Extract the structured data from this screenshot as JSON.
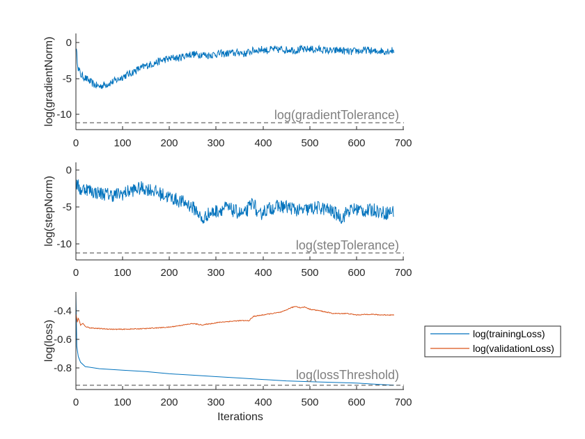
{
  "chart_data": [
    {
      "type": "line",
      "ylabel": "log(gradientNorm)",
      "xlim": [
        0,
        700
      ],
      "ylim": [
        -12.5,
        1.5
      ],
      "xticks": [
        0,
        100,
        200,
        300,
        400,
        500,
        600,
        700
      ],
      "yticks": [
        0,
        -5,
        -10
      ],
      "series": [
        {
          "name": "log(gradientNorm)",
          "color": "#0072BD",
          "x": [
            0,
            5,
            10,
            20,
            30,
            40,
            50,
            60,
            70,
            80,
            90,
            100,
            110,
            120,
            130,
            140,
            150,
            160,
            170,
            180,
            190,
            200,
            210,
            220,
            230,
            240,
            250,
            260,
            270,
            280,
            290,
            300,
            310,
            320,
            330,
            340,
            350,
            360,
            370,
            380,
            390,
            400,
            410,
            420,
            430,
            440,
            450,
            460,
            470,
            480,
            490,
            500,
            510,
            520,
            530,
            540,
            550,
            560,
            570,
            580,
            590,
            600,
            610,
            620,
            630,
            640,
            650,
            660,
            670,
            680
          ],
          "y": [
            -0.5,
            -3.5,
            -4.5,
            -5.0,
            -5.5,
            -6.0,
            -6.2,
            -6.0,
            -5.8,
            -5.5,
            -5.2,
            -4.8,
            -4.5,
            -4.2,
            -3.8,
            -3.5,
            -3.2,
            -3.0,
            -2.8,
            -2.5,
            -2.3,
            -2.2,
            -2.0,
            -2.1,
            -1.8,
            -1.6,
            -1.5,
            -1.6,
            -1.5,
            -1.7,
            -1.6,
            -1.5,
            -1.4,
            -1.5,
            -1.3,
            -1.4,
            -1.2,
            -1.5,
            -1.2,
            -1.0,
            -0.9,
            -0.8,
            -1.0,
            -0.8,
            -0.9,
            -0.8,
            -0.9,
            -0.8,
            -1.0,
            -0.8,
            -0.9,
            -0.7,
            -0.9,
            -0.8,
            -0.9,
            -1.0,
            -1.1,
            -0.9,
            -1.0,
            -1.1,
            -1.2,
            -1.0,
            -1.1,
            -0.9,
            -1.0,
            -1.2,
            -1.0,
            -1.1,
            -1.0,
            -1.0
          ],
          "noise": 0.55
        }
      ],
      "reference": {
        "label": "log(gradientTolerance)",
        "y": -11.5
      }
    },
    {
      "type": "line",
      "ylabel": "log(stepNorm)",
      "xlim": [
        0,
        700
      ],
      "ylim": [
        -12.5,
        1.5
      ],
      "xticks": [
        0,
        100,
        200,
        300,
        400,
        500,
        600,
        700
      ],
      "yticks": [
        0,
        -5,
        -10
      ],
      "series": [
        {
          "name": "log(stepNorm)",
          "color": "#0072BD",
          "x": [
            0,
            10,
            20,
            40,
            60,
            80,
            100,
            120,
            140,
            160,
            180,
            200,
            220,
            240,
            260,
            270,
            280,
            300,
            320,
            340,
            360,
            370,
            380,
            390,
            400,
            420,
            440,
            460,
            480,
            500,
            520,
            540,
            560,
            570,
            580,
            600,
            620,
            640,
            660,
            680
          ],
          "y": [
            -1.5,
            -2.5,
            -2.2,
            -2.8,
            -3.0,
            -3.2,
            -3.0,
            -2.5,
            -2.2,
            -2.4,
            -3.0,
            -3.5,
            -4.0,
            -4.5,
            -5.5,
            -7.0,
            -6.0,
            -5.5,
            -5.0,
            -5.5,
            -6.0,
            -5.0,
            -4.0,
            -6.5,
            -5.5,
            -5.0,
            -4.8,
            -5.0,
            -5.5,
            -5.2,
            -5.0,
            -5.3,
            -6.0,
            -6.5,
            -5.5,
            -5.2,
            -5.5,
            -5.3,
            -5.8,
            -5.5
          ],
          "noise": 1.0
        }
      ],
      "reference": {
        "label": "log(stepTolerance)",
        "y": -11.5
      }
    },
    {
      "type": "line",
      "ylabel": "log(loss)",
      "xlabel": "Iterations",
      "xlim": [
        0,
        700
      ],
      "ylim": [
        -0.95,
        -0.27
      ],
      "xticks": [
        0,
        100,
        200,
        300,
        400,
        500,
        600,
        700
      ],
      "yticks": [
        -0.4,
        -0.6,
        -0.8
      ],
      "series": [
        {
          "name": "log(trainingLoss)",
          "color": "#0072BD",
          "x": [
            0,
            2,
            5,
            10,
            20,
            50,
            100,
            150,
            200,
            250,
            300,
            350,
            400,
            450,
            500,
            550,
            600,
            650,
            680
          ],
          "y": [
            -0.28,
            -0.65,
            -0.72,
            -0.76,
            -0.79,
            -0.805,
            -0.815,
            -0.825,
            -0.84,
            -0.85,
            -0.86,
            -0.87,
            -0.88,
            -0.89,
            -0.895,
            -0.9,
            -0.905,
            -0.915,
            -0.92
          ],
          "noise": 0.0
        },
        {
          "name": "log(validationLoss)",
          "color": "#D95319",
          "x": [
            0,
            3,
            5,
            10,
            15,
            20,
            30,
            50,
            80,
            100,
            150,
            200,
            230,
            250,
            270,
            290,
            310,
            330,
            350,
            370,
            380,
            400,
            420,
            440,
            460,
            470,
            480,
            490,
            500,
            520,
            550,
            580,
            600,
            630,
            650,
            680
          ],
          "y": [
            -0.42,
            -0.48,
            -0.45,
            -0.5,
            -0.49,
            -0.51,
            -0.52,
            -0.525,
            -0.53,
            -0.53,
            -0.525,
            -0.515,
            -0.5,
            -0.49,
            -0.5,
            -0.49,
            -0.48,
            -0.475,
            -0.47,
            -0.47,
            -0.44,
            -0.43,
            -0.42,
            -0.41,
            -0.38,
            -0.37,
            -0.38,
            -0.375,
            -0.39,
            -0.4,
            -0.42,
            -0.42,
            -0.43,
            -0.425,
            -0.43,
            -0.43
          ],
          "noise": 0.003
        }
      ],
      "reference": {
        "label": "log(lossThreshold)",
        "y": -0.92
      },
      "legend": {
        "position": "right",
        "entries": [
          "log(trainingLoss)",
          "log(validationLoss)"
        ]
      }
    }
  ]
}
